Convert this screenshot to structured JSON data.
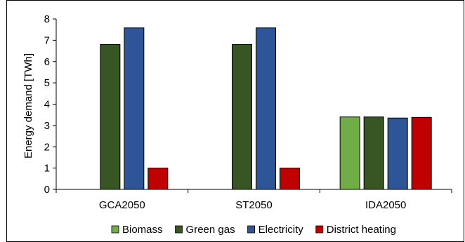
{
  "chart_data": {
    "type": "bar",
    "title": "",
    "xlabel": "",
    "ylabel": "Energy demand [TWh]",
    "ylim": [
      0,
      8
    ],
    "yticks": [
      0,
      1,
      2,
      3,
      4,
      5,
      6,
      7,
      8
    ],
    "categories": [
      "GCA2050",
      "ST2050",
      "IDA2050"
    ],
    "series": [
      {
        "name": "Biomass",
        "color": "#70ad47",
        "values": [
          0,
          0,
          3.4
        ]
      },
      {
        "name": "Green gas",
        "color": "#375623",
        "values": [
          6.8,
          6.8,
          3.4
        ]
      },
      {
        "name": "Electricity",
        "color": "#2e5597",
        "values": [
          7.58,
          7.58,
          3.35
        ]
      },
      {
        "name": "District heating",
        "color": "#c00000",
        "values": [
          1.0,
          1.0,
          3.38
        ]
      }
    ],
    "grid": false,
    "legend_position": "bottom"
  }
}
